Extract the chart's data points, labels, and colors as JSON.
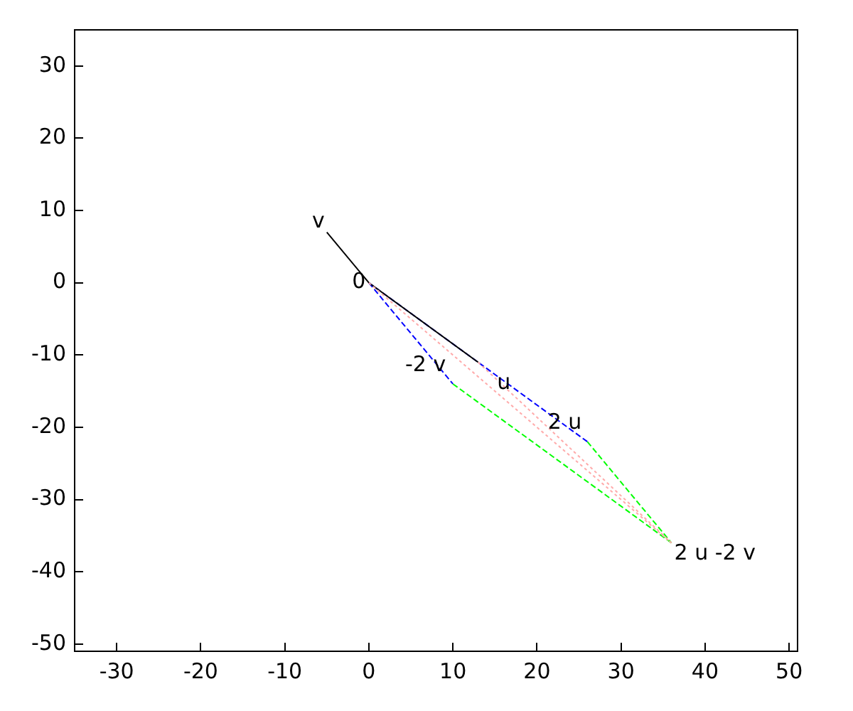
{
  "chart_data": {
    "type": "line",
    "xlim": [
      -35,
      51
    ],
    "ylim": [
      -51,
      35
    ],
    "xticks": [
      -30,
      -20,
      -10,
      0,
      10,
      20,
      30,
      40,
      50
    ],
    "yticks": [
      -50,
      -40,
      -30,
      -20,
      -10,
      0,
      10,
      20,
      30
    ],
    "grid": false,
    "legend": false,
    "marker": "none",
    "series": [
      {
        "color": "#000000",
        "line_style": "solid",
        "x": [
          -5,
          0,
          13
        ],
        "values": [
          7,
          0,
          -11
        ]
      },
      {
        "color": "#0000ff",
        "line_style": "dashed",
        "x": [
          0,
          10
        ],
        "values": [
          0,
          -14
        ]
      },
      {
        "color": "#0000ff",
        "line_style": "dashed",
        "x": [
          0,
          26
        ],
        "values": [
          0,
          -22
        ]
      },
      {
        "color": "#00ff00",
        "line_style": "dashed",
        "x": [
          10,
          36
        ],
        "values": [
          -14,
          -36
        ]
      },
      {
        "color": "#00ff00",
        "line_style": "dashed",
        "x": [
          26,
          36
        ],
        "values": [
          -22,
          -36
        ]
      },
      {
        "color": "#ffaaaa",
        "line_style": "dotted",
        "x": [
          0,
          36
        ],
        "values": [
          0,
          -36
        ]
      },
      {
        "color": "#ffaaaa",
        "line_style": "dotted",
        "x": [
          13,
          36
        ],
        "values": [
          -11,
          -36
        ]
      }
    ],
    "annotations": [
      {
        "text": "v",
        "x": -5,
        "y": 7
      },
      {
        "text": "0",
        "x": 0,
        "y": 0
      },
      {
        "text": "-2 v",
        "x": 10,
        "y": -14
      },
      {
        "text": "u",
        "x": 13,
        "y": -11
      },
      {
        "text": "2 u",
        "x": 26,
        "y": -22
      },
      {
        "text": "2 u -2 v",
        "x": 36,
        "y": -36
      }
    ]
  }
}
